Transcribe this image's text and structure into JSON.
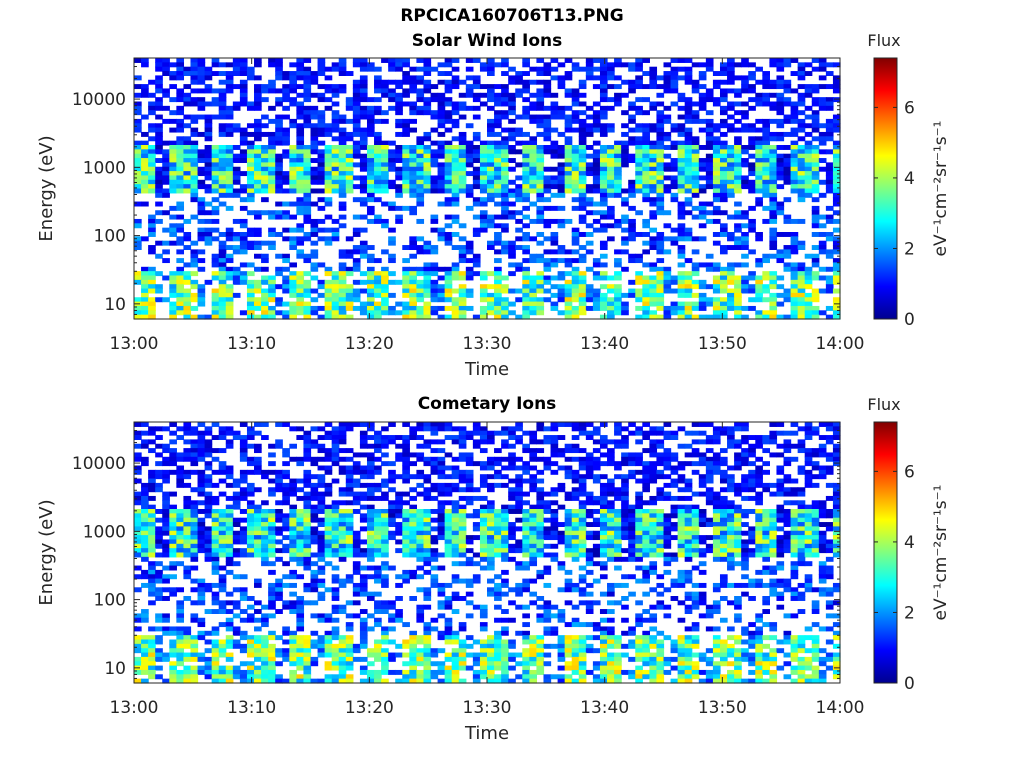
{
  "figure": {
    "title": "RPCICA160706T13.PNG"
  },
  "colors": {
    "colormap": [
      "#00008f",
      "#0000ff",
      "#0080ff",
      "#00ffff",
      "#80ff80",
      "#ffff00",
      "#ff8000",
      "#ff0000",
      "#800000"
    ],
    "axis": "#262626"
  },
  "chart_data": [
    {
      "type": "heatmap",
      "title": "Solar Wind Ions",
      "xlabel": "Time",
      "ylabel": "Energy (eV)",
      "x_ticks": [
        "13:00",
        "13:10",
        "13:20",
        "13:30",
        "13:40",
        "13:50",
        "14:00"
      ],
      "x_range": [
        "13:00",
        "14:00"
      ],
      "y_scale": "log",
      "y_ticks": [
        "10",
        "100",
        "1000",
        "10000"
      ],
      "y_range": [
        6,
        40000
      ],
      "colorbar": {
        "title": "Flux",
        "label": "eV⁻¹cm⁻²sr⁻¹s⁻¹",
        "ticks": [
          "0",
          "2",
          "4",
          "6"
        ],
        "range": [
          0,
          7.4
        ]
      },
      "description_of_pattern": "",
      "bands": [
        {
          "energy_eV": [
            400,
            2000
          ],
          "flux": [
            1.5,
            4.5
          ],
          "period_min": 3.3
        },
        {
          "energy_eV": [
            6,
            30
          ],
          "flux": [
            2,
            5
          ],
          "period_min": 3.3
        },
        {
          "energy_eV": [
            2000,
            40000
          ],
          "flux": [
            0.5,
            1.5
          ]
        }
      ]
    },
    {
      "type": "heatmap",
      "title": "Cometary Ions",
      "xlabel": "Time",
      "ylabel": "Energy (eV)",
      "x_ticks": [
        "13:00",
        "13:10",
        "13:20",
        "13:30",
        "13:40",
        "13:50",
        "14:00"
      ],
      "x_range": [
        "13:00",
        "14:00"
      ],
      "y_scale": "log",
      "y_ticks": [
        "10",
        "100",
        "1000",
        "10000"
      ],
      "y_range": [
        6,
        40000
      ],
      "colorbar": {
        "title": "Flux",
        "label": "eV⁻¹cm⁻²sr⁻¹s⁻¹",
        "ticks": [
          "0",
          "2",
          "4",
          "6"
        ],
        "range": [
          0,
          7.4
        ]
      },
      "bands": [
        {
          "energy_eV": [
            400,
            2000
          ],
          "flux": [
            1.5,
            4.5
          ],
          "period_min": 3.3
        },
        {
          "energy_eV": [
            6,
            30
          ],
          "flux": [
            2,
            5
          ],
          "period_min": 3.3
        },
        {
          "energy_eV": [
            2000,
            40000
          ],
          "flux": [
            0.5,
            1.5
          ]
        }
      ]
    }
  ]
}
